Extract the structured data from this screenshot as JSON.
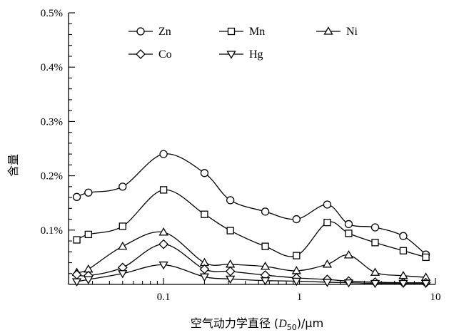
{
  "chart_data": {
    "type": "line",
    "title": "",
    "xlabel": "空气动力学直径 (D50)/μm",
    "ylabel": "含量",
    "x_scale": "log",
    "xlim": [
      0.02,
      10
    ],
    "ylim": [
      0,
      0.5
    ],
    "x_ticks": [
      0.1,
      1,
      10
    ],
    "x_tick_labels": [
      "0.1",
      "1",
      "10"
    ],
    "y_ticks": [
      0.1,
      0.2,
      0.3,
      0.4,
      0.5
    ],
    "y_tick_labels": [
      "0.1%",
      "0.2%",
      "0.3%",
      "0.4%",
      "0.5%"
    ],
    "grid": false,
    "legend": {
      "placement": "top",
      "columns": 3
    },
    "series": [
      {
        "name": "Zn",
        "marker": "circle",
        "color": "#000000",
        "x": [
          0.023,
          0.028,
          0.05,
          0.1,
          0.2,
          0.31,
          0.56,
          0.95,
          1.6,
          2.3,
          3.6,
          5.8,
          8.5
        ],
        "y": [
          0.161,
          0.169,
          0.18,
          0.24,
          0.205,
          0.155,
          0.134,
          0.12,
          0.147,
          0.111,
          0.105,
          0.089,
          0.055
        ]
      },
      {
        "name": "Mn",
        "marker": "square",
        "color": "#000000",
        "x": [
          0.023,
          0.028,
          0.05,
          0.1,
          0.2,
          0.31,
          0.56,
          0.95,
          1.6,
          2.3,
          3.6,
          5.8,
          8.5
        ],
        "y": [
          0.082,
          0.092,
          0.107,
          0.174,
          0.129,
          0.099,
          0.07,
          0.053,
          0.114,
          0.094,
          0.077,
          0.062,
          0.05
        ]
      },
      {
        "name": "Ni",
        "marker": "triangle-up",
        "color": "#000000",
        "x": [
          0.023,
          0.028,
          0.05,
          0.1,
          0.2,
          0.31,
          0.56,
          0.95,
          1.6,
          2.3,
          3.6,
          5.8,
          8.5
        ],
        "y": [
          0.022,
          0.028,
          0.07,
          0.096,
          0.04,
          0.037,
          0.033,
          0.025,
          0.037,
          0.054,
          0.022,
          0.016,
          0.013
        ]
      },
      {
        "name": "Co",
        "marker": "diamond",
        "color": "#000000",
        "x": [
          0.023,
          0.028,
          0.05,
          0.1,
          0.2,
          0.31,
          0.56,
          0.95,
          1.6,
          2.3,
          3.6,
          5.8,
          8.5
        ],
        "y": [
          0.018,
          0.016,
          0.031,
          0.074,
          0.028,
          0.024,
          0.017,
          0.012,
          0.009,
          0.006,
          0.004,
          0.003,
          0.003
        ]
      },
      {
        "name": "Hg",
        "marker": "triangle-down",
        "color": "#000000",
        "x": [
          0.023,
          0.028,
          0.05,
          0.1,
          0.2,
          0.31,
          0.56,
          0.95,
          1.6,
          2.3,
          3.6,
          5.8,
          8.5
        ],
        "y": [
          0.005,
          0.009,
          0.02,
          0.036,
          0.014,
          0.01,
          0.007,
          0.006,
          0.004,
          0.003,
          0.002,
          0.002,
          0.002
        ]
      }
    ]
  }
}
